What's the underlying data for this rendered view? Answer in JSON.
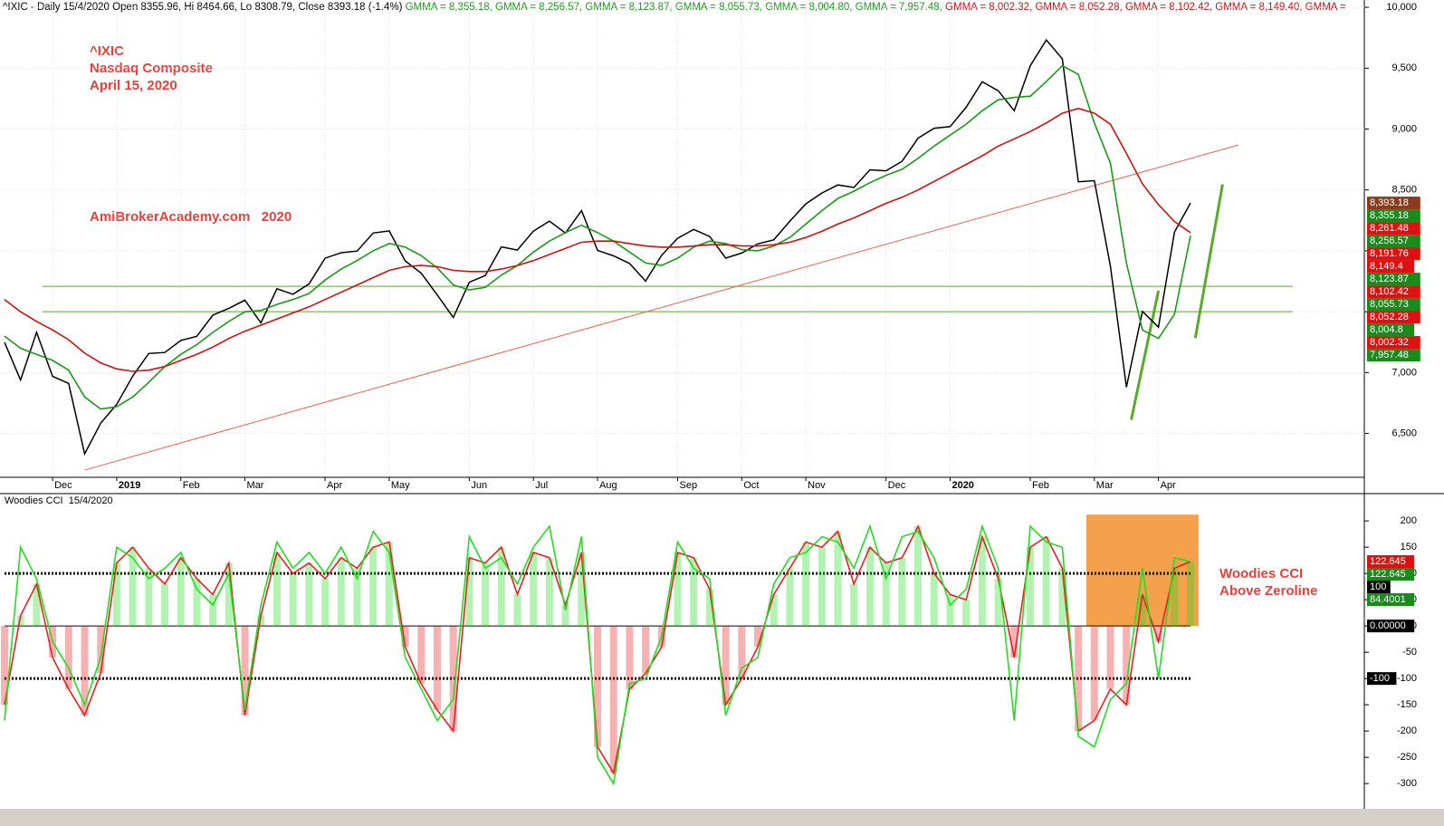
{
  "chart_data": [
    {
      "type": "line",
      "header": [
        {
          "text": "^IXIC - Daily 15/4/2020 Open 8355.96, Hi 8464.66, Lo 8308.79, Close 8393.18 (-1.4%) ",
          "color": "#000000"
        },
        {
          "text": "GMMA = 8,355.18, ",
          "color": "#1a9a1a"
        },
        {
          "text": "GMMA = 8,256.57, ",
          "color": "#1a9a1a"
        },
        {
          "text": "GMMA = 8,123.87, ",
          "color": "#1a9a1a"
        },
        {
          "text": "GMMA = 8,055.73, ",
          "color": "#1a9a1a"
        },
        {
          "text": "GMMA = 8,004.80, ",
          "color": "#1a9a1a"
        },
        {
          "text": "GMMA = 7,957.48, ",
          "color": "#1a9a1a"
        },
        {
          "text": "GMMA = 8,002.32, ",
          "color": "#d01010"
        },
        {
          "text": "GMMA = 8,052.28, ",
          "color": "#d01010"
        },
        {
          "text": "GMMA = 8,102.42, ",
          "color": "#d01010"
        },
        {
          "text": "GMMA = 8,149.40, ",
          "color": "#d01010"
        },
        {
          "text": "GMMA = ",
          "color": "#d01010"
        }
      ],
      "annotations": [
        "^IXIC",
        "Nasdaq Composite",
        "April 15, 2020",
        "AmiBrokerAcademy.com   2020"
      ],
      "categories": [
        null,
        null,
        null,
        "Dec",
        null,
        null,
        null,
        "2019",
        null,
        null,
        null,
        "Feb",
        null,
        null,
        null,
        "Mar",
        null,
        null,
        null,
        null,
        "Apr",
        null,
        null,
        null,
        "May",
        null,
        null,
        null,
        null,
        "Jun",
        null,
        null,
        null,
        "Jul",
        null,
        null,
        null,
        "Aug",
        null,
        null,
        null,
        null,
        "Sep",
        null,
        null,
        null,
        "Oct",
        null,
        null,
        null,
        "Nov",
        null,
        null,
        null,
        null,
        "Dec",
        null,
        null,
        null,
        "2020",
        null,
        null,
        null,
        null,
        "Feb",
        null,
        null,
        null,
        "Mar",
        null,
        null,
        null,
        "Apr",
        null,
        null
      ],
      "series": [
        {
          "color": "#000000",
          "values": [
            7248,
            6939,
            7331,
            6969,
            6911,
            6333,
            6584,
            6739,
            6971,
            7157,
            7165,
            7264,
            7298,
            7472,
            7527,
            7595,
            7408,
            7689,
            7643,
            7729,
            7939,
            7984,
            7998,
            8146,
            8164,
            7917,
            7816,
            7637,
            7453,
            7742,
            7797,
            8032,
            8006,
            8162,
            8244,
            8146,
            8330,
            8004,
            7959,
            7896,
            7751,
            7963,
            8103,
            8176,
            8118,
            7940,
            7982,
            8057,
            8090,
            8243,
            8386,
            8475,
            8541,
            8520,
            8665,
            8657,
            8735,
            8925,
            9007,
            9020,
            9179,
            9389,
            9315,
            9151,
            9520,
            9731,
            9577,
            8567,
            8576,
            7875,
            6880,
            7502,
            7373,
            8154,
            8393.18
          ]
        },
        {
          "color": "#1a9a1a",
          "values": [
            7300,
            7200,
            7150,
            7100,
            7020,
            6800,
            6700,
            6720,
            6800,
            6920,
            7050,
            7150,
            7230,
            7330,
            7420,
            7500,
            7510,
            7560,
            7600,
            7650,
            7760,
            7850,
            7920,
            8000,
            8060,
            8030,
            7960,
            7860,
            7720,
            7680,
            7700,
            7800,
            7880,
            7990,
            8080,
            8150,
            8210,
            8150,
            8080,
            7990,
            7900,
            7880,
            7940,
            8030,
            8080,
            8060,
            8010,
            8000,
            8040,
            8110,
            8220,
            8330,
            8430,
            8490,
            8560,
            8620,
            8670,
            8760,
            8860,
            8950,
            9040,
            9150,
            9240,
            9260,
            9270,
            9390,
            9520,
            9450,
            9050,
            8720,
            7900,
            7350,
            7280,
            7480,
            8123.87
          ]
        },
        {
          "color": "#d01010",
          "values": [
            7600,
            7500,
            7420,
            7350,
            7270,
            7160,
            7080,
            7030,
            7010,
            7020,
            7050,
            7100,
            7150,
            7210,
            7280,
            7340,
            7390,
            7440,
            7490,
            7540,
            7600,
            7660,
            7720,
            7780,
            7840,
            7870,
            7880,
            7870,
            7840,
            7830,
            7830,
            7850,
            7880,
            7920,
            7970,
            8020,
            8070,
            8080,
            8080,
            8060,
            8040,
            8030,
            8030,
            8040,
            8050,
            8050,
            8040,
            8040,
            8050,
            8070,
            8110,
            8160,
            8220,
            8270,
            8330,
            8390,
            8440,
            8500,
            8570,
            8640,
            8710,
            8780,
            8860,
            8920,
            8980,
            9050,
            9130,
            9170,
            9130,
            9040,
            8800,
            8550,
            8380,
            8240,
            8149.4
          ]
        }
      ],
      "levels": [
        {
          "value": 7709,
          "color": "#5aaa2a"
        },
        {
          "value": 7500,
          "color": "#5aaa2a"
        }
      ],
      "trendlines": [
        {
          "color": "#f06050",
          "points": [
            [
              5,
              6200
            ],
            [
              77,
              8870
            ]
          ]
        },
        {
          "color": "#5aaa2a",
          "points": [
            [
              70.3,
              6612
            ],
            [
              72,
              7672
            ]
          ]
        },
        {
          "color": "#5aaa2a",
          "points": [
            [
              74.3,
              7284
            ],
            [
              76,
              8545
            ]
          ]
        }
      ],
      "ylim": [
        6140,
        10060
      ],
      "yticks": [
        {
          "value": 6500,
          "label": "6,500"
        },
        {
          "value": 7000,
          "label": "7,000"
        },
        {
          "value": 7500,
          "label": "7,500"
        },
        {
          "value": 8000,
          "label": "8,000"
        },
        {
          "value": 8500,
          "label": "8,500"
        },
        {
          "value": 9000,
          "label": "9,000"
        },
        {
          "value": 9500,
          "label": "9,500"
        },
        {
          "value": 10000,
          "label": "10,000"
        }
      ],
      "price_tags": [
        {
          "value": 8393.18,
          "label": "8,393.18",
          "color": "#8b3a1a"
        },
        {
          "value": 8355.18,
          "label": "8,355.18",
          "color": "#1a8a1a"
        },
        {
          "value": 8261.48,
          "label": "8,261.48",
          "color": "#e01010"
        },
        {
          "value": 8256.57,
          "label": "8,256.57",
          "color": "#1a8a1a"
        },
        {
          "value": 8191.76,
          "label": "8,191.76",
          "color": "#e01010"
        },
        {
          "value": 8149.4,
          "label": "8,149.4",
          "color": "#e01010"
        },
        {
          "value": 8123.87,
          "label": "8,123.87",
          "color": "#1a8a1a"
        },
        {
          "value": 8102.42,
          "label": "8,102.42",
          "color": "#e01010"
        },
        {
          "value": 8055.73,
          "label": "8,055.73",
          "color": "#1a8a1a"
        },
        {
          "value": 8052.28,
          "label": "8,052.28",
          "color": "#e01010"
        },
        {
          "value": 8004.8,
          "label": "8,004.8",
          "color": "#1a8a1a"
        },
        {
          "value": 8002.32,
          "label": "8,002.32",
          "color": "#e01010"
        },
        {
          "value": 7957.48,
          "label": "7,957.48",
          "color": "#1a8a1a"
        }
      ],
      "grid": true
    },
    {
      "type": "line",
      "title": "Woodies CCI  15/4/2020",
      "annotations": [
        "Woodies CCI",
        "Above Zeroline"
      ],
      "series": [
        {
          "color": "#e82020",
          "values": [
            -150,
            20,
            80,
            -60,
            -120,
            -170,
            -90,
            120,
            150,
            110,
            80,
            130,
            90,
            60,
            120,
            -170,
            20,
            140,
            100,
            120,
            90,
            130,
            110,
            150,
            160,
            -40,
            -110,
            -160,
            -200,
            130,
            120,
            150,
            60,
            140,
            130,
            40,
            140,
            -230,
            -280,
            -120,
            -90,
            -40,
            140,
            130,
            70,
            -150,
            -100,
            -40,
            60,
            110,
            160,
            150,
            180,
            80,
            150,
            120,
            130,
            190,
            100,
            60,
            50,
            170,
            90,
            -60,
            150,
            170,
            110,
            -200,
            -180,
            -120,
            -150,
            60,
            -30,
            110,
            122.645
          ]
        },
        {
          "color": "#22dd22",
          "values": [
            -180,
            150,
            90,
            -30,
            -80,
            -150,
            -60,
            150,
            130,
            90,
            110,
            140,
            70,
            40,
            100,
            -160,
            40,
            160,
            110,
            140,
            100,
            150,
            90,
            180,
            140,
            -60,
            -120,
            -180,
            -140,
            170,
            110,
            130,
            80,
            150,
            190,
            30,
            170,
            -250,
            -300,
            -110,
            -100,
            -20,
            160,
            110,
            90,
            -170,
            -80,
            -60,
            80,
            130,
            140,
            170,
            160,
            110,
            190,
            90,
            170,
            180,
            130,
            40,
            70,
            190,
            110,
            -180,
            190,
            160,
            150,
            -210,
            -230,
            -140,
            -110,
            110,
            -100,
            130,
            122.645
          ]
        }
      ],
      "histogram": true,
      "levels": [
        {
          "value": 100,
          "color": "#000000"
        },
        {
          "value": 0,
          "color": "#000000"
        },
        {
          "value": -100,
          "color": "#000000"
        }
      ],
      "highlight": {
        "from": 68,
        "to": 74,
        "ylim": [
          0,
          212
        ],
        "color": "#f5a04a"
      },
      "ylim": [
        -348,
        252
      ],
      "yticks": [
        200,
        150,
        100,
        50,
        0,
        -50,
        -100,
        -150,
        -200,
        -250,
        -300
      ],
      "price_tags": [
        {
          "value": 122.645,
          "label": "122.645",
          "color": "#e01010"
        },
        {
          "value": 122.645,
          "label": "122.645",
          "color": "#1a8a1a"
        },
        {
          "value": 100,
          "label": "100",
          "color": "#000000"
        },
        {
          "value": 84.4001,
          "label": "84.4001",
          "color": "#1a8a1a"
        },
        {
          "value": 0,
          "label": "0.00000",
          "color": "#000000"
        },
        {
          "value": -100,
          "label": "-100",
          "color": "#000000"
        }
      ]
    }
  ]
}
